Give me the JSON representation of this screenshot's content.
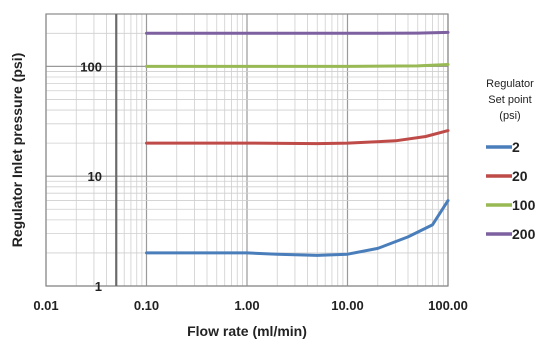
{
  "chart_data": {
    "type": "line",
    "xscale": "log",
    "yscale": "log",
    "xlim": [
      0.01,
      100
    ],
    "ylim": [
      1,
      300
    ],
    "xlabel": "Flow rate (ml/min)",
    "ylabel": "Regulator Inlet pressure (psi)",
    "xticks": [
      0.01,
      0.1,
      1,
      10,
      100
    ],
    "xtick_labels": [
      "0.01",
      "0.10",
      "1.00",
      "10.00",
      "100.00"
    ],
    "yticks": [
      1,
      10,
      100
    ],
    "ytick_labels": [
      "1",
      "10",
      "100"
    ],
    "grid": true,
    "reference_line_x": 0.05,
    "legend": {
      "title_lines": [
        "Regulator",
        "Set point",
        "(psi)"
      ],
      "position": "right"
    },
    "series": [
      {
        "name": "2",
        "color": "#4a7ebb",
        "x": [
          0.1,
          0.3,
          1,
          2,
          5,
          10,
          20,
          40,
          70,
          100
        ],
        "y": [
          2,
          2,
          2,
          1.95,
          1.9,
          1.95,
          2.2,
          2.8,
          3.6,
          6
        ]
      },
      {
        "name": "20",
        "color": "#be4b48",
        "x": [
          0.1,
          1,
          5,
          10,
          30,
          60,
          100
        ],
        "y": [
          20,
          20,
          19.8,
          20,
          21,
          23,
          26
        ]
      },
      {
        "name": "100",
        "color": "#98b954",
        "x": [
          0.1,
          1,
          10,
          50,
          100
        ],
        "y": [
          100,
          100,
          100,
          101,
          104
        ]
      },
      {
        "name": "200",
        "color": "#7d60a0",
        "x": [
          0.1,
          1,
          10,
          50,
          100
        ],
        "y": [
          200,
          200,
          200,
          201,
          204
        ]
      }
    ]
  }
}
